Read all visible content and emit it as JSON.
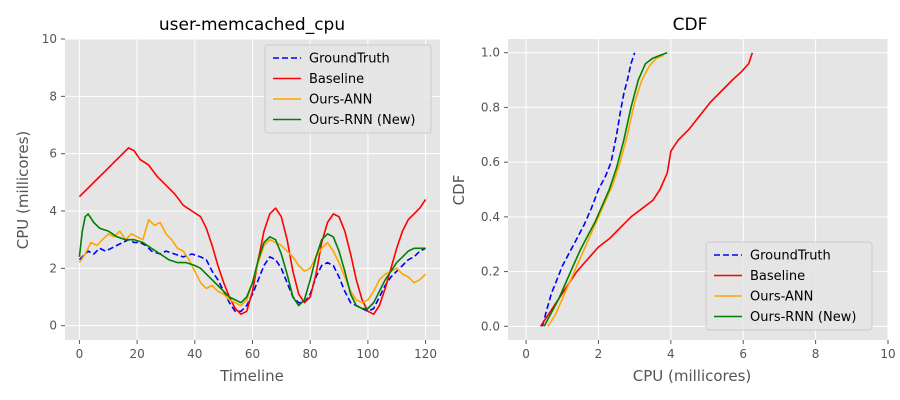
{
  "chart_data": [
    {
      "type": "line",
      "title": "user-memcached_cpu",
      "xlabel": "Timeline",
      "ylabel": "CPU (millicores)",
      "xlim": [
        -5,
        125
      ],
      "ylim": [
        -0.5,
        10
      ],
      "xticks": [
        "0",
        "20",
        "40",
        "60",
        "80",
        "100",
        "120"
      ],
      "yticks": [
        "0",
        "2",
        "4",
        "6",
        "8",
        "10"
      ],
      "grid": true,
      "legend_position": "top-right",
      "series": [
        {
          "name": "GroundTruth",
          "color": "#0000ff",
          "dash": "dashed",
          "x": [
            0,
            3,
            5,
            7,
            9,
            11,
            13,
            15,
            17,
            19,
            21,
            23,
            25,
            28,
            30,
            33,
            36,
            39,
            42,
            44,
            46,
            48,
            50,
            52,
            54,
            56,
            58,
            60,
            62,
            64,
            66,
            68,
            70,
            72,
            74,
            76,
            78,
            80,
            82,
            84,
            86,
            88,
            90,
            92,
            94,
            96,
            98,
            100,
            102,
            104,
            106,
            108,
            110,
            112,
            114,
            116,
            118,
            120
          ],
          "y": [
            2.3,
            2.6,
            2.5,
            2.7,
            2.6,
            2.7,
            2.8,
            2.9,
            3.0,
            2.9,
            2.9,
            2.8,
            2.6,
            2.5,
            2.6,
            2.5,
            2.4,
            2.5,
            2.4,
            2.3,
            1.9,
            1.6,
            1.2,
            0.8,
            0.5,
            0.5,
            0.7,
            1.1,
            1.6,
            2.1,
            2.4,
            2.3,
            2.0,
            1.5,
            1.0,
            0.8,
            0.8,
            1.1,
            1.7,
            2.1,
            2.2,
            2.1,
            1.7,
            1.2,
            0.8,
            0.7,
            0.6,
            0.5,
            0.6,
            1.0,
            1.4,
            1.7,
            1.9,
            2.1,
            2.3,
            2.4,
            2.6,
            2.7
          ]
        },
        {
          "name": "Baseline",
          "color": "#ff0000",
          "dash": "solid",
          "x": [
            0,
            3,
            6,
            9,
            12,
            15,
            17,
            19,
            21,
            24,
            27,
            30,
            33,
            36,
            39,
            42,
            44,
            46,
            48,
            50,
            52,
            54,
            56,
            58,
            60,
            62,
            64,
            66,
            68,
            70,
            72,
            74,
            76,
            78,
            80,
            82,
            84,
            86,
            88,
            90,
            92,
            94,
            96,
            98,
            100,
            102,
            104,
            106,
            108,
            110,
            112,
            114,
            116,
            118,
            120
          ],
          "y": [
            4.5,
            4.8,
            5.1,
            5.4,
            5.7,
            6.0,
            6.2,
            6.1,
            5.8,
            5.6,
            5.2,
            4.9,
            4.6,
            4.2,
            4.0,
            3.8,
            3.4,
            2.8,
            2.1,
            1.5,
            1.0,
            0.6,
            0.4,
            0.5,
            1.2,
            2.3,
            3.3,
            3.9,
            4.1,
            3.8,
            3.0,
            1.9,
            1.1,
            0.8,
            1.0,
            1.8,
            2.9,
            3.6,
            3.9,
            3.8,
            3.3,
            2.5,
            1.6,
            0.9,
            0.5,
            0.4,
            0.7,
            1.3,
            2.0,
            2.7,
            3.3,
            3.7,
            3.9,
            4.1,
            4.4
          ]
        },
        {
          "name": "Ours-ANN",
          "color": "#ffa500",
          "dash": "solid",
          "x": [
            0,
            2,
            4,
            6,
            8,
            10,
            12,
            14,
            16,
            18,
            20,
            22,
            24,
            26,
            28,
            30,
            32,
            34,
            36,
            38,
            40,
            42,
            44,
            46,
            48,
            50,
            52,
            54,
            56,
            58,
            60,
            62,
            64,
            66,
            68,
            70,
            72,
            74,
            76,
            78,
            80,
            82,
            84,
            86,
            88,
            90,
            92,
            94,
            96,
            98,
            100,
            102,
            104,
            106,
            108,
            110,
            112,
            114,
            116,
            118,
            120
          ],
          "y": [
            2.2,
            2.5,
            2.9,
            2.8,
            3.0,
            3.2,
            3.1,
            3.3,
            3.0,
            3.2,
            3.1,
            3.0,
            3.7,
            3.5,
            3.6,
            3.2,
            3.0,
            2.7,
            2.6,
            2.3,
            1.9,
            1.5,
            1.3,
            1.4,
            1.2,
            1.1,
            0.9,
            0.8,
            0.7,
            0.9,
            1.5,
            2.2,
            2.8,
            3.0,
            2.9,
            2.8,
            2.6,
            2.4,
            2.1,
            1.9,
            2.0,
            2.4,
            2.7,
            2.9,
            2.6,
            2.2,
            1.7,
            1.2,
            0.9,
            0.8,
            0.9,
            1.2,
            1.6,
            1.8,
            1.9,
            2.0,
            1.8,
            1.7,
            1.5,
            1.6,
            1.8
          ]
        },
        {
          "name": "Ours-RNN (New)",
          "color": "#008000",
          "dash": "solid",
          "x": [
            0,
            1,
            2,
            3,
            5,
            7,
            10,
            13,
            16,
            19,
            22,
            25,
            28,
            31,
            34,
            37,
            40,
            42,
            44,
            46,
            48,
            50,
            52,
            54,
            56,
            58,
            60,
            62,
            64,
            66,
            68,
            70,
            72,
            74,
            76,
            78,
            80,
            82,
            84,
            86,
            88,
            90,
            92,
            94,
            96,
            98,
            100,
            102,
            104,
            106,
            108,
            110,
            112,
            114,
            116,
            118,
            120
          ],
          "y": [
            2.4,
            3.3,
            3.8,
            3.9,
            3.6,
            3.4,
            3.3,
            3.1,
            3.0,
            3.0,
            2.9,
            2.7,
            2.5,
            2.3,
            2.2,
            2.2,
            2.1,
            2.0,
            1.8,
            1.6,
            1.4,
            1.2,
            1.0,
            0.9,
            0.8,
            1.0,
            1.5,
            2.3,
            2.9,
            3.1,
            3.0,
            2.5,
            1.8,
            1.0,
            0.7,
            0.9,
            1.6,
            2.4,
            3.0,
            3.2,
            3.1,
            2.6,
            1.9,
            1.1,
            0.7,
            0.6,
            0.6,
            0.8,
            1.2,
            1.6,
            1.9,
            2.2,
            2.4,
            2.6,
            2.7,
            2.7,
            2.7
          ]
        }
      ]
    },
    {
      "type": "line",
      "title": "CDF",
      "xlabel": "CPU (millicores)",
      "ylabel": "CDF",
      "xlim": [
        -0.5,
        10
      ],
      "ylim": [
        -0.05,
        1.05
      ],
      "xticks": [
        "0",
        "2",
        "4",
        "6",
        "8",
        "10"
      ],
      "yticks": [
        "0.0",
        "0.2",
        "0.4",
        "0.6",
        "0.8",
        "1.0"
      ],
      "grid": true,
      "legend_position": "bottom-right",
      "series": [
        {
          "name": "GroundTruth",
          "color": "#0000ff",
          "dash": "dashed",
          "x": [
            0.45,
            0.55,
            0.7,
            0.85,
            1.0,
            1.2,
            1.4,
            1.6,
            1.8,
            2.0,
            2.2,
            2.35,
            2.5,
            2.6,
            2.7,
            2.8,
            2.9,
            3.0
          ],
          "y": [
            0.0,
            0.05,
            0.12,
            0.17,
            0.22,
            0.27,
            0.32,
            0.37,
            0.43,
            0.5,
            0.55,
            0.6,
            0.7,
            0.78,
            0.85,
            0.9,
            0.96,
            1.0
          ]
        },
        {
          "name": "Baseline",
          "color": "#ff0000",
          "dash": "solid",
          "x": [
            0.4,
            0.6,
            0.8,
            1.0,
            1.2,
            1.4,
            1.6,
            1.8,
            2.0,
            2.3,
            2.6,
            2.9,
            3.2,
            3.5,
            3.7,
            3.9,
            4.0,
            4.2,
            4.5,
            4.8,
            5.1,
            5.4,
            5.7,
            5.95,
            6.15,
            6.25
          ],
          "y": [
            0.0,
            0.04,
            0.08,
            0.12,
            0.16,
            0.2,
            0.23,
            0.26,
            0.29,
            0.32,
            0.36,
            0.4,
            0.43,
            0.46,
            0.5,
            0.56,
            0.64,
            0.68,
            0.72,
            0.77,
            0.82,
            0.86,
            0.9,
            0.93,
            0.96,
            1.0
          ]
        },
        {
          "name": "Ours-ANN",
          "color": "#ffa500",
          "dash": "solid",
          "x": [
            0.6,
            0.8,
            1.0,
            1.2,
            1.4,
            1.6,
            1.8,
            2.0,
            2.2,
            2.4,
            2.6,
            2.8,
            3.0,
            3.2,
            3.4,
            3.6,
            3.8
          ],
          "y": [
            0.0,
            0.04,
            0.1,
            0.16,
            0.22,
            0.28,
            0.34,
            0.4,
            0.46,
            0.52,
            0.6,
            0.7,
            0.82,
            0.9,
            0.95,
            0.98,
            0.99
          ]
        },
        {
          "name": "Ours-RNN (New)",
          "color": "#008000",
          "dash": "solid",
          "x": [
            0.5,
            0.7,
            0.9,
            1.1,
            1.3,
            1.5,
            1.7,
            1.9,
            2.1,
            2.3,
            2.5,
            2.7,
            2.9,
            3.1,
            3.3,
            3.5,
            3.7,
            3.9
          ],
          "y": [
            0.0,
            0.05,
            0.1,
            0.16,
            0.22,
            0.28,
            0.33,
            0.38,
            0.44,
            0.5,
            0.58,
            0.68,
            0.8,
            0.9,
            0.96,
            0.98,
            0.99,
            1.0
          ]
        }
      ]
    }
  ]
}
